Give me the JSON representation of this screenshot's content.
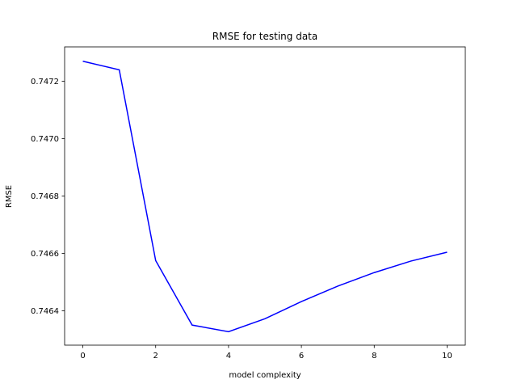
{
  "chart_data": {
    "type": "line",
    "title": "RMSE for testing data",
    "xlabel": "model complexity",
    "ylabel": "RMSE",
    "x": [
      0,
      1,
      2,
      3,
      4,
      5,
      6,
      7,
      8,
      9,
      10
    ],
    "series": [
      {
        "values": [
          0.74727,
          0.74724,
          0.746575,
          0.74635,
          0.746327,
          0.746372,
          0.746432,
          0.746486,
          0.746533,
          0.746573,
          0.746604
        ],
        "color": "#0000ff"
      }
    ],
    "xlim": [
      -0.5,
      10.5
    ],
    "ylim": [
      0.74628,
      0.74732
    ],
    "xticks": [
      0,
      2,
      4,
      6,
      8,
      10
    ],
    "xtick_labels": [
      "0",
      "2",
      "4",
      "6",
      "8",
      "10"
    ],
    "yticks": [
      0.7464,
      0.7466,
      0.7468,
      0.747,
      0.7472
    ],
    "ytick_labels": [
      "0.7464",
      "0.7466",
      "0.7468",
      "0.7470",
      "0.7472"
    ],
    "grid": false,
    "legend": false
  }
}
